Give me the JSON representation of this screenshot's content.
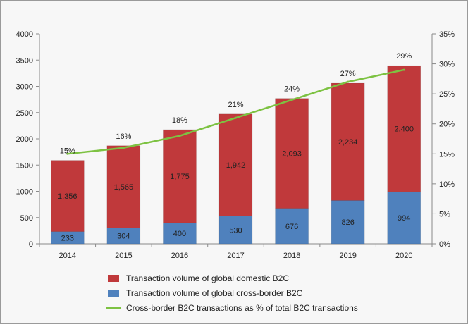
{
  "chart_data": {
    "type": "bar",
    "stacked": true,
    "categories": [
      "2014",
      "2015",
      "2016",
      "2017",
      "2018",
      "2019",
      "2020"
    ],
    "series": [
      {
        "name": "Transaction volume of global cross-border B2C",
        "values": [
          233,
          304,
          400,
          530,
          676,
          826,
          994
        ],
        "labels": [
          "233",
          "304",
          "400",
          "530",
          "676",
          "826",
          "994"
        ],
        "color": "#4f81bd",
        "axis": "left"
      },
      {
        "name": "Transaction volume of global domestic B2C",
        "values": [
          1356,
          1565,
          1775,
          1942,
          2093,
          2234,
          2400
        ],
        "labels": [
          "1,356",
          "1,565",
          "1,775",
          "1,942",
          "2,093",
          "2,234",
          "2,400"
        ],
        "color": "#c0393b",
        "axis": "left"
      },
      {
        "name": "Cross-border B2C transactions as % of total B2C transactions",
        "type": "line",
        "values": [
          15,
          16,
          18,
          21,
          24,
          27,
          29
        ],
        "labels": [
          "15%",
          "16%",
          "18%",
          "21%",
          "24%",
          "27%",
          "29%"
        ],
        "color": "#7dc242",
        "axis": "right"
      }
    ],
    "left_axis": {
      "min": 0,
      "max": 4000,
      "step": 500,
      "ticks": [
        "0",
        "500",
        "1000",
        "1500",
        "2000",
        "2500",
        "3000",
        "3500",
        "4000"
      ]
    },
    "right_axis": {
      "min": 0,
      "max": 35,
      "step": 5,
      "ticks": [
        "0%",
        "5%",
        "10%",
        "15%",
        "20%",
        "25%",
        "30%",
        "35%"
      ]
    },
    "title": "",
    "xlabel": "",
    "ylabel": "",
    "grid": false,
    "legend_position": "bottom",
    "legend_order": [
      1,
      0,
      2
    ]
  }
}
